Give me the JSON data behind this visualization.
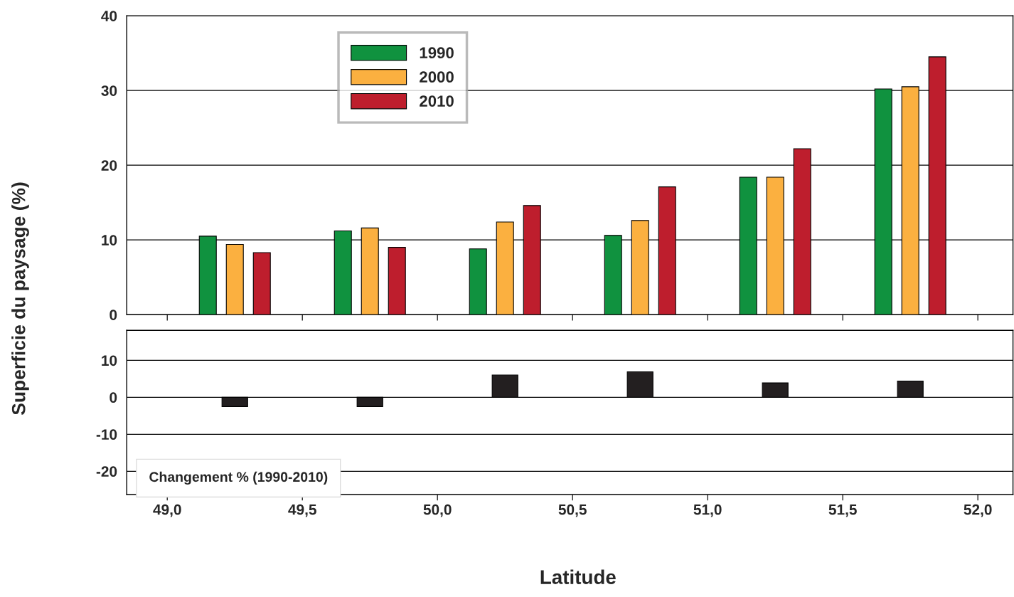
{
  "chart_data": [
    {
      "type": "bar",
      "ylabel": "Superficie du paysage (%)",
      "x": [
        49.25,
        49.75,
        50.25,
        50.75,
        51.25,
        51.75
      ],
      "series": [
        {
          "name": "1990",
          "color": "#10923f",
          "values": [
            10.5,
            11.2,
            8.8,
            10.6,
            18.4,
            30.2
          ]
        },
        {
          "name": "2000",
          "color": "#fbb040",
          "values": [
            9.4,
            11.6,
            12.4,
            12.6,
            18.4,
            30.5
          ]
        },
        {
          "name": "2010",
          "color": "#be1e2d",
          "values": [
            8.3,
            9.0,
            14.6,
            17.1,
            22.2,
            34.5
          ]
        }
      ],
      "xlim": [
        48.85,
        52.13
      ],
      "ylim": [
        0,
        40
      ],
      "xticks": [
        {
          "value": 49.0,
          "label": null
        },
        {
          "value": 49.5,
          "label": null
        },
        {
          "value": 50.0,
          "label": null
        },
        {
          "value": 50.5,
          "label": null
        },
        {
          "value": 51.0,
          "label": null
        },
        {
          "value": 51.5,
          "label": null
        },
        {
          "value": 52.0,
          "label": null
        }
      ],
      "yticks": [
        0,
        10,
        20,
        30,
        40
      ],
      "grid": "y",
      "legend": "top left",
      "tick_labels": "y"
    },
    {
      "type": "bar",
      "xlabel": "Latitude",
      "x": [
        49.25,
        49.75,
        50.25,
        50.75,
        51.25,
        51.75
      ],
      "series": [
        {
          "color": "#231f20",
          "values": [
            -2.5,
            -2.5,
            6.0,
            6.9,
            3.9,
            4.4
          ]
        }
      ],
      "annotations": [
        "Changement % (1990-2010)"
      ],
      "xlim": [
        48.85,
        52.13
      ],
      "ylim": [
        -26.3,
        18.1
      ],
      "xticks": [
        {
          "value": 49.0,
          "label": "49,0"
        },
        {
          "value": 49.5,
          "label": "49,5"
        },
        {
          "value": 50.0,
          "label": "50,0"
        },
        {
          "value": 50.5,
          "label": "50,5"
        },
        {
          "value": 51.0,
          "label": "51,0"
        },
        {
          "value": 51.5,
          "label": "51,5"
        },
        {
          "value": 52.0,
          "label": "52,0"
        }
      ],
      "yticks": [
        -20,
        -10,
        0,
        10
      ],
      "grid": "y"
    }
  ]
}
